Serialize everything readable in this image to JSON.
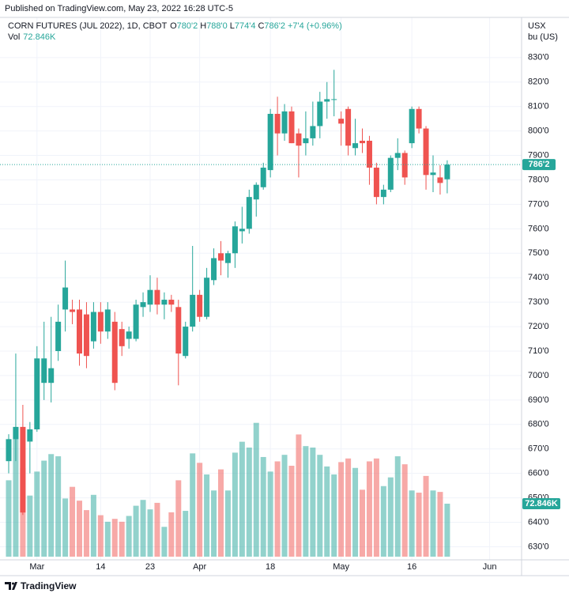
{
  "header": {
    "published": "Published on TradingView.com, May 23, 2022 16:28 UTC-5",
    "footer": "TradingView"
  },
  "chart_data": {
    "type": "candlestick",
    "symbol": "CORN FUTURES (JUL 2022), 1D, CBOT",
    "last_quote": [
      {
        "prefix": "O",
        "label": "780'2"
      },
      {
        "prefix": "H",
        "label": "788'0"
      },
      {
        "prefix": "L",
        "label": "774'4"
      },
      {
        "prefix": "C",
        "label": "786'2"
      }
    ],
    "change_label": "+7'4 (+0.96%)",
    "volume_name": "Vol",
    "volume_last_label": "72.846K",
    "y_unit": [
      "USX",
      "bu (US)"
    ],
    "up_color": "#26a69a",
    "down_color": "#ef5350",
    "categories": [
      null,
      null,
      null,
      null,
      "Mar",
      null,
      null,
      null,
      null,
      null,
      null,
      null,
      null,
      "14",
      null,
      null,
      null,
      null,
      null,
      null,
      "23",
      null,
      null,
      null,
      null,
      null,
      null,
      "Apr",
      null,
      null,
      null,
      null,
      null,
      null,
      null,
      null,
      null,
      "18",
      null,
      null,
      null,
      null,
      null,
      null,
      null,
      null,
      null,
      "May",
      null,
      null,
      null,
      null,
      null,
      null,
      null,
      null,
      null,
      "16",
      null,
      null,
      null,
      null,
      null,
      null,
      null,
      null,
      null,
      null,
      "Jun"
    ],
    "open": [
      665,
      674,
      679,
      673,
      678,
      697,
      697,
      710,
      727,
      727,
      727,
      725,
      714,
      726,
      718,
      722,
      719,
      715,
      715,
      728,
      729,
      735,
      729,
      731,
      728,
      708,
      720,
      733,
      724,
      739,
      750,
      746,
      750,
      759,
      760,
      772,
      777,
      784,
      807,
      799,
      808,
      799,
      795,
      797,
      802,
      812,
      813,
      805,
      809,
      793,
      796,
      796,
      785,
      773,
      776,
      789,
      791,
      795,
      809,
      801,
      782,
      781,
      780.25,
      null,
      null,
      null,
      null,
      null,
      null
    ],
    "high": [
      676,
      709,
      688,
      681,
      712,
      722,
      724,
      729,
      747,
      731,
      731,
      730,
      730,
      730,
      730,
      726,
      722,
      720,
      731,
      734,
      741,
      740,
      734,
      733,
      731,
      722,
      753,
      735,
      744,
      752,
      755,
      751,
      763,
      769,
      776,
      779,
      787,
      809,
      814,
      811,
      810,
      801,
      808,
      812,
      816,
      820,
      825,
      808,
      810,
      805,
      801,
      798,
      787,
      778,
      790,
      797,
      792,
      810,
      810,
      802,
      790,
      786,
      788,
      null,
      null,
      null,
      null,
      null,
      null
    ],
    "low": [
      660,
      665,
      643,
      660,
      677,
      690,
      689,
      706,
      718,
      721,
      704,
      703,
      711,
      713,
      715,
      694,
      708,
      711,
      714,
      724,
      726,
      725,
      723,
      726,
      696,
      707,
      718,
      722,
      723,
      737,
      741,
      740,
      744,
      754,
      758,
      765,
      776,
      781,
      790,
      796,
      795,
      781,
      790,
      794,
      797,
      805,
      806,
      794,
      790,
      790,
      791,
      778,
      770,
      770,
      775,
      784,
      778,
      793,
      799,
      776,
      775,
      774,
      774.5,
      null,
      null,
      null,
      null,
      null,
      null
    ],
    "close": [
      674,
      679,
      644,
      678,
      707,
      707,
      703,
      722,
      736,
      726,
      709,
      708,
      726,
      718,
      727,
      697,
      712,
      718,
      729,
      730,
      735,
      729,
      731,
      729,
      709,
      720,
      733,
      724,
      740,
      748,
      747,
      750,
      761,
      760,
      773,
      778,
      785,
      807,
      799,
      808,
      795,
      794,
      797,
      802,
      812,
      813,
      813,
      803,
      794,
      795,
      795,
      785,
      773,
      776,
      789,
      791,
      781,
      809,
      801,
      782,
      783,
      778.75,
      786.25,
      null,
      null,
      null,
      null,
      null,
      null
    ],
    "volume": [
      105,
      178,
      122,
      84,
      117,
      132,
      141,
      138,
      80,
      96,
      77,
      64,
      85,
      57,
      48,
      52,
      48,
      56,
      70,
      78,
      65,
      74,
      41,
      61,
      105,
      63,
      142,
      129,
      113,
      91,
      120,
      91,
      143,
      158,
      150,
      184,
      137,
      117,
      131,
      140,
      125,
      168,
      152,
      150,
      140,
      124,
      113,
      130,
      135,
      122,
      92,
      131,
      135,
      97,
      109,
      138,
      127,
      91,
      88,
      111,
      91,
      89,
      72.846,
      null,
      null,
      null,
      null,
      null,
      null
    ],
    "ylim": [
      624,
      839
    ],
    "yticks": [
      {
        "value": 630,
        "label": "630'0"
      },
      {
        "value": 640,
        "label": "640'0"
      },
      {
        "value": 650,
        "label": "650'0"
      },
      {
        "value": 660,
        "label": "660'0"
      },
      {
        "value": 670,
        "label": "670'0"
      },
      {
        "value": 680,
        "label": "680'0"
      },
      {
        "value": 690,
        "label": "690'0"
      },
      {
        "value": 700,
        "label": "700'0"
      },
      {
        "value": 710,
        "label": "710'0"
      },
      {
        "value": 720,
        "label": "720'0"
      },
      {
        "value": 730,
        "label": "730'0"
      },
      {
        "value": 740,
        "label": "740'0"
      },
      {
        "value": 750,
        "label": "750'0"
      },
      {
        "value": 760,
        "label": "760'0"
      },
      {
        "value": 770,
        "label": "770'0"
      },
      {
        "value": 780,
        "label": "780'0"
      },
      {
        "value": 790,
        "label": "790'0"
      },
      {
        "value": 800,
        "label": "800'0"
      },
      {
        "value": 810,
        "label": "810'0"
      },
      {
        "value": 820,
        "label": "820'0"
      },
      {
        "value": 830,
        "label": "830'0"
      }
    ],
    "grid": true
  }
}
